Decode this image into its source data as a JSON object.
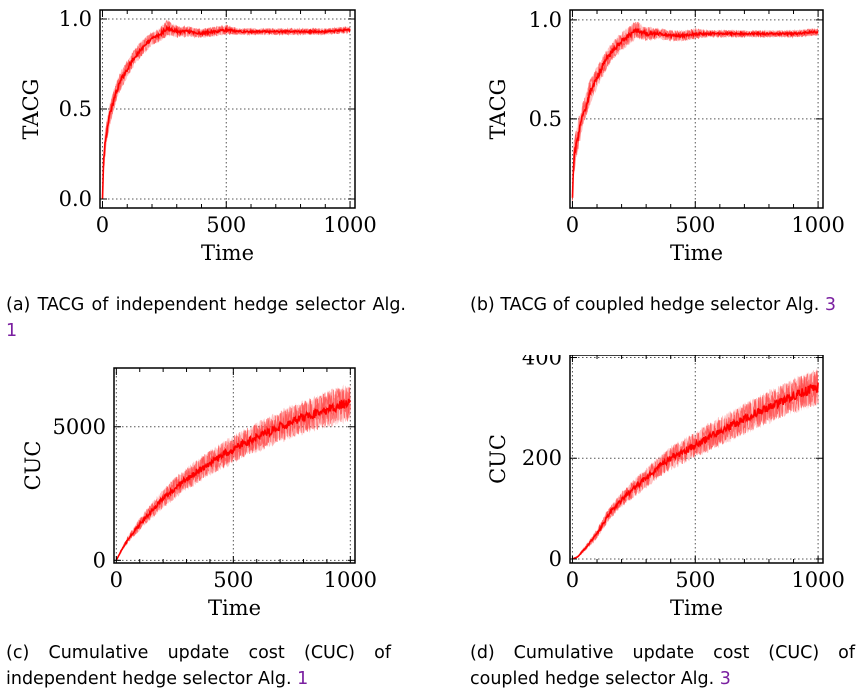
{
  "chart_data": [
    {
      "type": "line",
      "id": "a",
      "xlabel": "Time",
      "ylabel": "TACG",
      "xlim": [
        -10,
        1020
      ],
      "ylim": [
        -0.05,
        1.05
      ],
      "xticks": [
        {
          "v": 0,
          "label": "0"
        },
        {
          "v": 500,
          "label": "500"
        },
        {
          "v": 1000,
          "label": "1000"
        }
      ],
      "yticks": [
        {
          "v": 0.0,
          "label": "0.0"
        },
        {
          "v": 0.5,
          "label": "0.5"
        },
        {
          "v": 1.0,
          "label": "1.0"
        }
      ],
      "grid": true,
      "series_color": "#ff0000",
      "band_color": "#ff4d4d",
      "x": [
        0,
        5,
        10,
        20,
        30,
        50,
        70,
        100,
        130,
        160,
        200,
        230,
        260,
        280,
        300,
        350,
        400,
        450,
        500,
        550,
        600,
        700,
        800,
        900,
        1000
      ],
      "mean": [
        0.0,
        0.22,
        0.3,
        0.4,
        0.47,
        0.57,
        0.65,
        0.72,
        0.79,
        0.84,
        0.89,
        0.91,
        0.95,
        0.94,
        0.93,
        0.93,
        0.92,
        0.93,
        0.94,
        0.93,
        0.93,
        0.93,
        0.93,
        0.93,
        0.94
      ],
      "spread": [
        0.0,
        0.08,
        0.08,
        0.07,
        0.07,
        0.06,
        0.06,
        0.05,
        0.05,
        0.05,
        0.04,
        0.04,
        0.05,
        0.04,
        0.04,
        0.03,
        0.03,
        0.03,
        0.03,
        0.02,
        0.02,
        0.02,
        0.02,
        0.02,
        0.02
      ]
    },
    {
      "type": "line",
      "id": "b",
      "xlabel": "Time",
      "ylabel": "TACG",
      "xlim": [
        -10,
        1020
      ],
      "ylim": [
        0.05,
        1.05
      ],
      "xticks": [
        {
          "v": 0,
          "label": "0"
        },
        {
          "v": 500,
          "label": "500"
        },
        {
          "v": 1000,
          "label": "1000"
        }
      ],
      "yticks": [
        {
          "v": 0.5,
          "label": "0.5"
        },
        {
          "v": 1.0,
          "label": "1.0"
        }
      ],
      "grid": true,
      "series_color": "#ff0000",
      "band_color": "#ff4d4d",
      "x": [
        0,
        5,
        10,
        20,
        30,
        50,
        70,
        100,
        130,
        160,
        200,
        230,
        260,
        280,
        300,
        350,
        400,
        450,
        500,
        550,
        600,
        700,
        800,
        900,
        1000
      ],
      "mean": [
        0.12,
        0.28,
        0.33,
        0.4,
        0.46,
        0.55,
        0.63,
        0.71,
        0.78,
        0.84,
        0.89,
        0.92,
        0.95,
        0.94,
        0.93,
        0.93,
        0.92,
        0.92,
        0.93,
        0.93,
        0.93,
        0.93,
        0.93,
        0.93,
        0.94
      ],
      "spread": [
        0.08,
        0.1,
        0.09,
        0.08,
        0.08,
        0.07,
        0.07,
        0.06,
        0.06,
        0.05,
        0.05,
        0.05,
        0.05,
        0.04,
        0.04,
        0.03,
        0.03,
        0.03,
        0.03,
        0.02,
        0.02,
        0.02,
        0.02,
        0.02,
        0.02
      ]
    },
    {
      "type": "line",
      "id": "c",
      "xlabel": "Time",
      "ylabel": "CUC",
      "xlim": [
        -10,
        1020
      ],
      "ylim": [
        -100,
        7200
      ],
      "xticks": [
        {
          "v": 0,
          "label": "0"
        },
        {
          "v": 500,
          "label": "500"
        },
        {
          "v": 1000,
          "label": "1000"
        }
      ],
      "yticks": [
        {
          "v": 0,
          "label": "0"
        },
        {
          "v": 5000,
          "label": "5000"
        }
      ],
      "grid": true,
      "series_color": "#ff0000",
      "band_color": "#ff4d4d",
      "x": [
        0,
        20,
        50,
        100,
        150,
        200,
        250,
        300,
        350,
        400,
        450,
        500,
        550,
        600,
        650,
        700,
        750,
        800,
        850,
        900,
        950,
        1000
      ],
      "mean": [
        0,
        350,
        800,
        1350,
        1850,
        2300,
        2700,
        3050,
        3350,
        3650,
        3900,
        4150,
        4400,
        4600,
        4800,
        5000,
        5200,
        5350,
        5500,
        5650,
        5800,
        5900
      ],
      "spread": [
        0,
        60,
        150,
        250,
        320,
        380,
        420,
        460,
        500,
        520,
        540,
        560,
        580,
        600,
        620,
        640,
        660,
        680,
        700,
        720,
        740,
        760
      ]
    },
    {
      "type": "line",
      "id": "d",
      "xlabel": "Time",
      "ylabel": "CUC",
      "xlim": [
        -10,
        1020
      ],
      "ylim": [
        -8,
        405
      ],
      "xticks": [
        {
          "v": 0,
          "label": "0"
        },
        {
          "v": 500,
          "label": "500"
        },
        {
          "v": 1000,
          "label": "1000"
        }
      ],
      "yticks": [
        {
          "v": 0,
          "label": "0"
        },
        {
          "v": 200,
          "label": "200"
        },
        {
          "v": 400,
          "label": "400"
        }
      ],
      "grid": true,
      "series_color": "#ff0000",
      "band_color": "#ff4d4d",
      "x": [
        0,
        20,
        50,
        100,
        150,
        200,
        250,
        300,
        350,
        400,
        450,
        500,
        550,
        600,
        650,
        700,
        750,
        800,
        850,
        900,
        950,
        1000
      ],
      "mean": [
        0,
        4,
        20,
        50,
        90,
        118,
        140,
        160,
        182,
        200,
        213,
        227,
        240,
        253,
        265,
        278,
        290,
        302,
        313,
        324,
        333,
        342
      ],
      "spread": [
        0,
        2,
        5,
        10,
        14,
        17,
        19,
        21,
        23,
        25,
        27,
        28,
        30,
        31,
        32,
        33,
        34,
        35,
        36,
        37,
        38,
        40
      ]
    }
  ],
  "captions": {
    "a": {
      "text": "(a) TACG of independent hedge selector Alg. ",
      "ref": "1"
    },
    "b": {
      "text": "(b) TACG of coupled hedge selector Alg. ",
      "ref": "3"
    },
    "c": {
      "text": "(c) Cumulative update cost (CUC) of independent hedge selector Alg. ",
      "ref": "1"
    },
    "d": {
      "text": "(d) Cumulative update cost (CUC) of coupled hedge selector Alg. ",
      "ref": "3"
    }
  }
}
